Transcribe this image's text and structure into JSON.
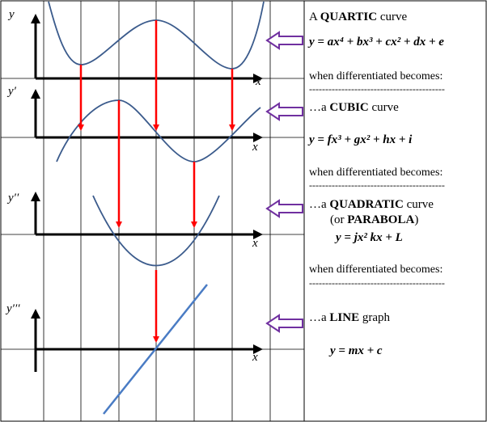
{
  "graphs": {
    "original": {
      "y_label": "y",
      "x_label": "x"
    },
    "first_derivative": {
      "y_label": "y′",
      "x_label": "x"
    },
    "second_derivative": {
      "y_label": "y′′",
      "x_label": "x"
    },
    "third_derivative": {
      "y_label": "y′′′",
      "x_label": "x"
    }
  },
  "text_panel": {
    "quartic": {
      "prefix": "A ",
      "bold": "QUARTIC",
      "suffix": " curve"
    },
    "quartic_eq": "y = ax⁴ + bx³ + cx² + dx + e",
    "diff1": "when differentiated becomes:",
    "dash1": "------------------------------------------",
    "cubic": {
      "prefix": "…a ",
      "bold": "CUBIC",
      "suffix": " curve"
    },
    "cubic_eq": "y = fx³ + gx² + hx + i",
    "diff2": "when differentiated becomes:",
    "dash2": "------------------------------------------",
    "quadratic": {
      "prefix": "…a ",
      "bold": "QUADRATIC",
      "suffix": " curve"
    },
    "parabola": {
      "prefix": "(or ",
      "bold": "PARABOLA",
      "suffix": ")"
    },
    "quadratic_eq": "y = jx²  kx + L",
    "diff3": "when differentiated becomes:",
    "dash3": "------------------------------------------",
    "line": {
      "prefix": "…a ",
      "bold": "LINE",
      "suffix": " graph"
    },
    "line_eq": "y = mx + c"
  },
  "colors": {
    "curve": "#3b5b8c",
    "line_graph": "#4a7cc4",
    "arrow": "#ff0000",
    "pointer_arrow": "#7030a0",
    "axis": "#000000",
    "grid": "#000000"
  }
}
